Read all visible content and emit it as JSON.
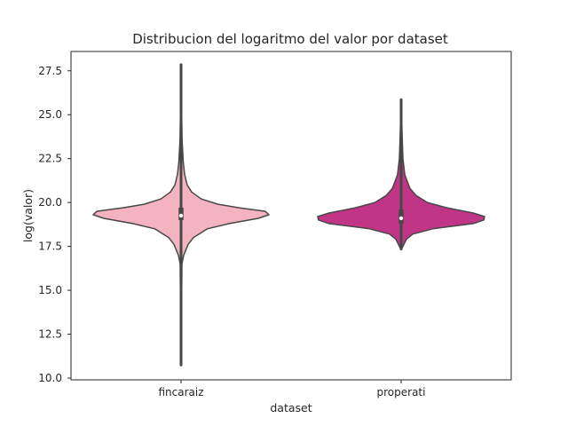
{
  "chart_data": {
    "type": "violin",
    "title": "Distribucion del logaritmo del valor por dataset",
    "xlabel": "dataset",
    "ylabel": "log(valor)",
    "categories": [
      "fincaraiz",
      "properati"
    ],
    "ylim": [
      9.9,
      28.6
    ],
    "yticks": [
      "10.0",
      "12.5",
      "15.0",
      "17.5",
      "20.0",
      "22.5",
      "25.0",
      "27.5"
    ],
    "grid": false,
    "legend": "none",
    "violins": [
      {
        "category": "fincaraiz",
        "color": "#f4b3c0",
        "min": 10.7,
        "max": 27.9,
        "q1": 19.0,
        "median": 19.25,
        "q3": 19.7,
        "whisker_low": 17.4,
        "whisker_high": 21.0,
        "density": [
          [
            10.7,
            0.0
          ],
          [
            16.5,
            0.01
          ],
          [
            17.0,
            0.03
          ],
          [
            17.6,
            0.08
          ],
          [
            18.0,
            0.14
          ],
          [
            18.5,
            0.3
          ],
          [
            18.8,
            0.55
          ],
          [
            19.1,
            0.88
          ],
          [
            19.3,
            1.0
          ],
          [
            19.5,
            0.96
          ],
          [
            19.7,
            0.66
          ],
          [
            19.9,
            0.42
          ],
          [
            20.2,
            0.23
          ],
          [
            20.6,
            0.12
          ],
          [
            21.0,
            0.07
          ],
          [
            21.6,
            0.04
          ],
          [
            22.3,
            0.025
          ],
          [
            23.5,
            0.012
          ],
          [
            25.0,
            0.007
          ],
          [
            27.9,
            0.0
          ]
        ]
      },
      {
        "category": "properati",
        "color": "#c13587",
        "min": 17.3,
        "max": 25.9,
        "q1": 18.8,
        "median": 19.1,
        "q3": 19.6,
        "whisker_low": 17.6,
        "whisker_high": 20.8,
        "density": [
          [
            17.3,
            0.0
          ],
          [
            17.6,
            0.03
          ],
          [
            17.9,
            0.06
          ],
          [
            18.2,
            0.13
          ],
          [
            18.5,
            0.36
          ],
          [
            18.8,
            0.82
          ],
          [
            19.0,
            0.94
          ],
          [
            19.2,
            0.95
          ],
          [
            19.4,
            0.82
          ],
          [
            19.7,
            0.52
          ],
          [
            20.0,
            0.3
          ],
          [
            20.4,
            0.17
          ],
          [
            20.8,
            0.1
          ],
          [
            21.2,
            0.07
          ],
          [
            21.6,
            0.04
          ],
          [
            22.5,
            0.02
          ],
          [
            24.0,
            0.01
          ],
          [
            25.9,
            0.0
          ]
        ]
      }
    ]
  }
}
